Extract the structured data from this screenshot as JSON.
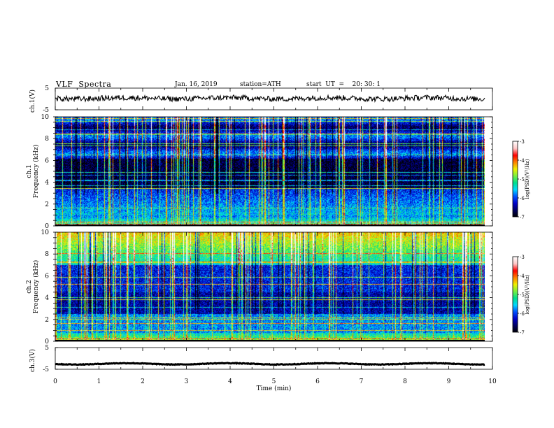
{
  "header": {
    "title": "VLF  Spectra",
    "date": "Jan. 16, 2019",
    "station": "station=ATH",
    "start": "start  UT  =    20: 30: 1"
  },
  "chart_data": [
    {
      "type": "line",
      "id": "ch1",
      "ylabel": "ch.1(V)",
      "ylim": [
        -5,
        5
      ],
      "yticks": [
        "5",
        "-5"
      ],
      "xlim": [
        0,
        10
      ],
      "series": [
        {
          "approx_level": 0.3,
          "amplitude": 1.0
        }
      ]
    },
    {
      "type": "heatmap",
      "id": "ch1-spectrogram",
      "ylabel": "ch.1\nFrequency (kHz)",
      "ylim": [
        0,
        10
      ],
      "yticks": [
        "0",
        "2",
        "4",
        "6",
        "8",
        "10"
      ],
      "xlim": [
        0,
        9.8
      ],
      "colorbar": {
        "label": "log(PSD)(V²/Hz)",
        "range": [
          -7,
          -3
        ],
        "ticks": [
          "-3",
          "-4",
          "-5",
          "-6",
          "-7"
        ]
      }
    },
    {
      "type": "heatmap",
      "id": "ch2-spectrogram",
      "ylabel": "ch.2\nFrequency (kHz)",
      "ylim": [
        0,
        10
      ],
      "yticks": [
        "0",
        "2",
        "4",
        "6",
        "8",
        "10"
      ],
      "xlim": [
        0,
        9.8
      ],
      "colorbar": {
        "label": "log(PSD)(V²/Hz)",
        "range": [
          -7,
          -3
        ],
        "ticks": [
          "-3",
          "-4",
          "-5",
          "-6",
          "-7"
        ]
      }
    },
    {
      "type": "line",
      "id": "ch3",
      "ylabel": "ch.3(V)",
      "ylim": [
        -5,
        5
      ],
      "yticks": [
        "5",
        "-5"
      ],
      "xlim": [
        0,
        10
      ],
      "series": [
        {
          "approx_level": -2.5,
          "amplitude": 0.3
        }
      ]
    }
  ],
  "xaxis": {
    "label": "Time  (min)",
    "ticks": [
      "0",
      "1",
      "2",
      "3",
      "4",
      "5",
      "6",
      "7",
      "8",
      "9",
      "10"
    ]
  },
  "colors": {
    "colormap": [
      "#000000",
      "#000060",
      "#0000c8",
      "#0050ff",
      "#00d8ff",
      "#00e08c",
      "#78f040",
      "#f0f000",
      "#ff8000",
      "#ff0000",
      "#ffc8c8",
      "#ffffff"
    ]
  }
}
